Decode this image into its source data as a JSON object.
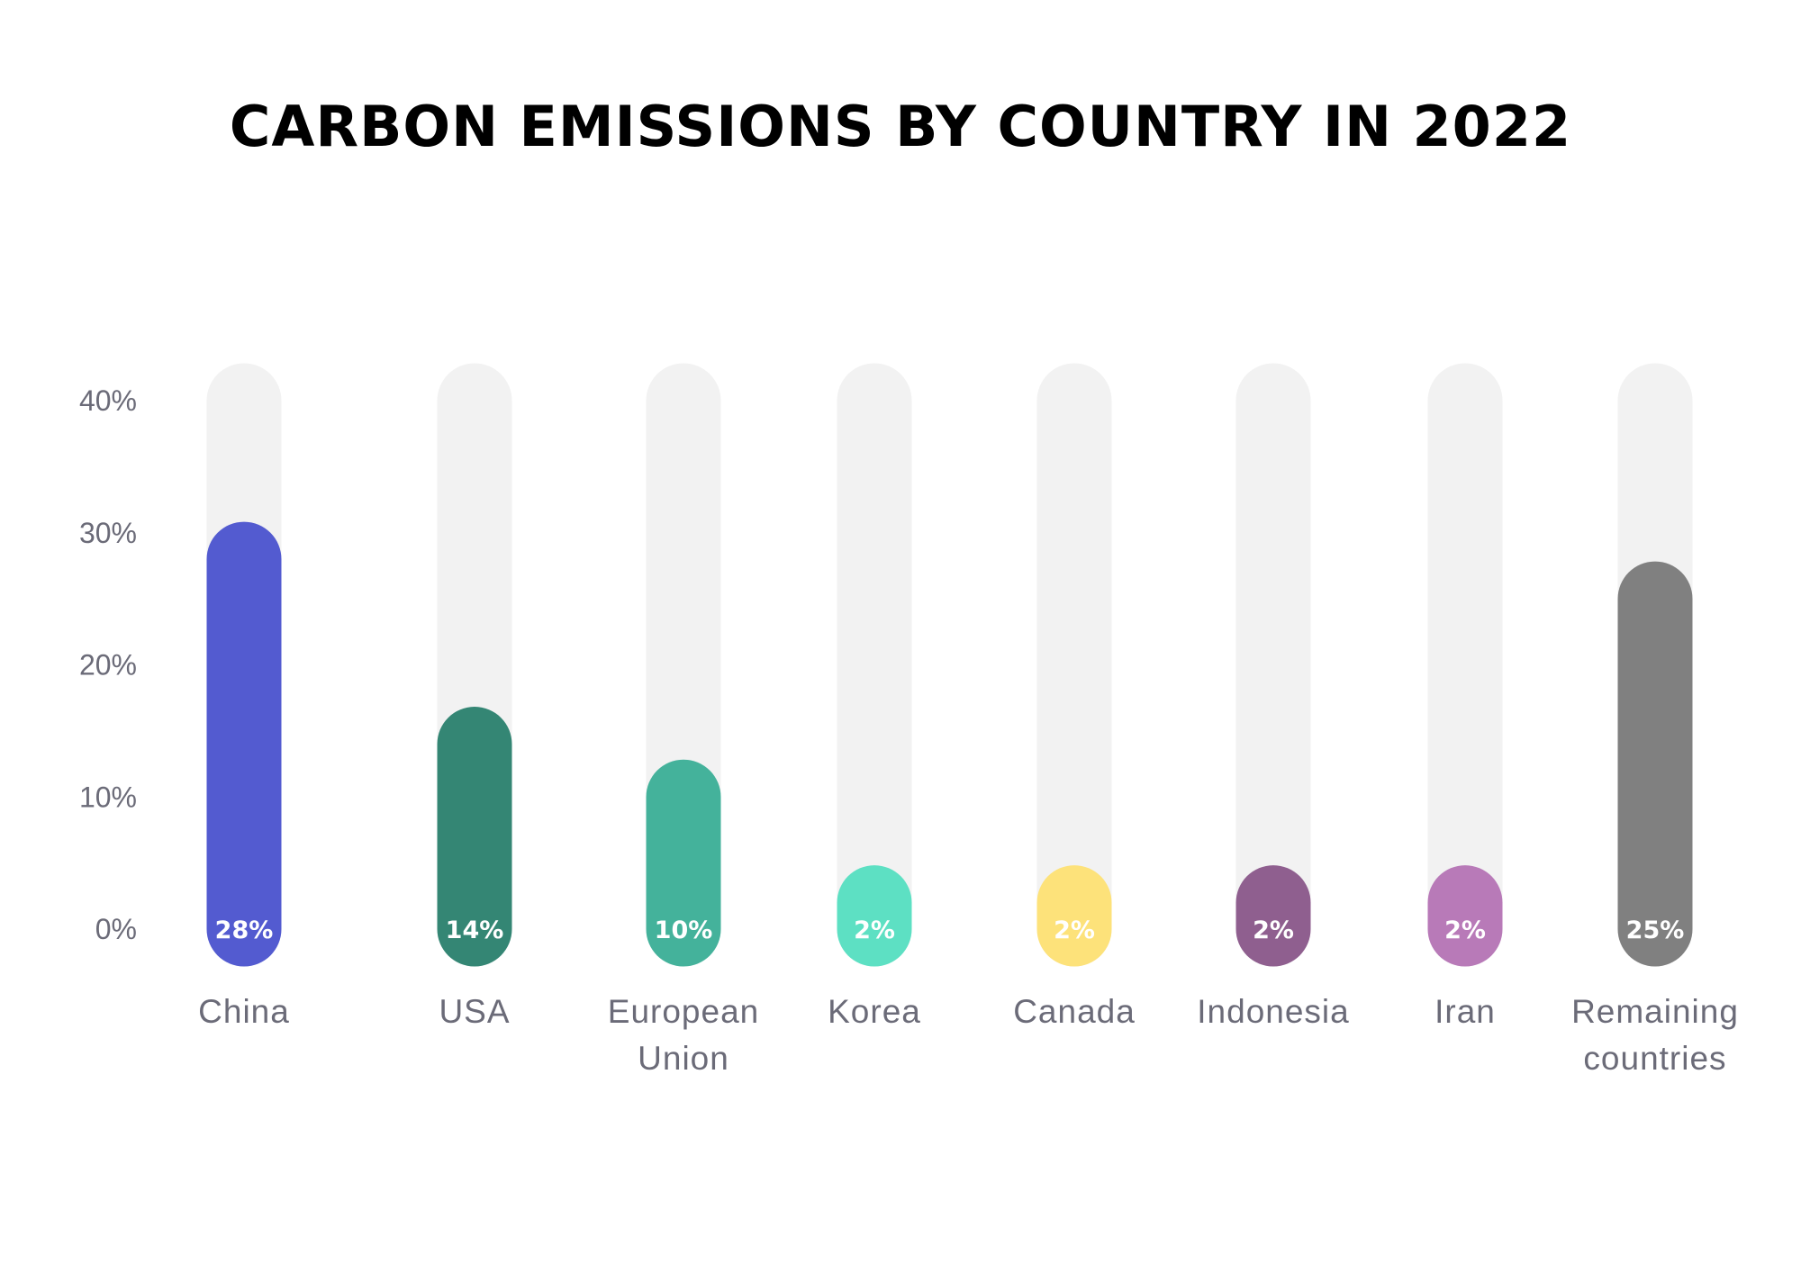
{
  "chart_data": {
    "type": "bar",
    "title": "CARBON EMISSIONS BY COUNTRY IN 2022",
    "xlabel": "",
    "ylabel": "",
    "ylim": [
      0,
      40
    ],
    "yticks": [
      "0%",
      "10%",
      "20%",
      "30%",
      "40%"
    ],
    "grid": false,
    "legend": "none",
    "track_color": "#f2f2f2",
    "categories": [
      [
        "China"
      ],
      [
        "USA"
      ],
      [
        "European",
        "Union"
      ],
      [
        "Korea"
      ],
      [
        "Canada"
      ],
      [
        "Indonesia"
      ],
      [
        "Iran"
      ],
      [
        "Remaining",
        "countries"
      ]
    ],
    "values": [
      28,
      14,
      10,
      2,
      2,
      2,
      2,
      25
    ],
    "value_labels": [
      "28%",
      "14%",
      "10%",
      "2%",
      "2%",
      "2%",
      "2%",
      "25%"
    ],
    "colors": [
      "#535bd0",
      "#348674",
      "#44b29b",
      "#5de0c3",
      "#fde27a",
      "#8f5f8f",
      "#b87ab8",
      "#808080"
    ]
  }
}
